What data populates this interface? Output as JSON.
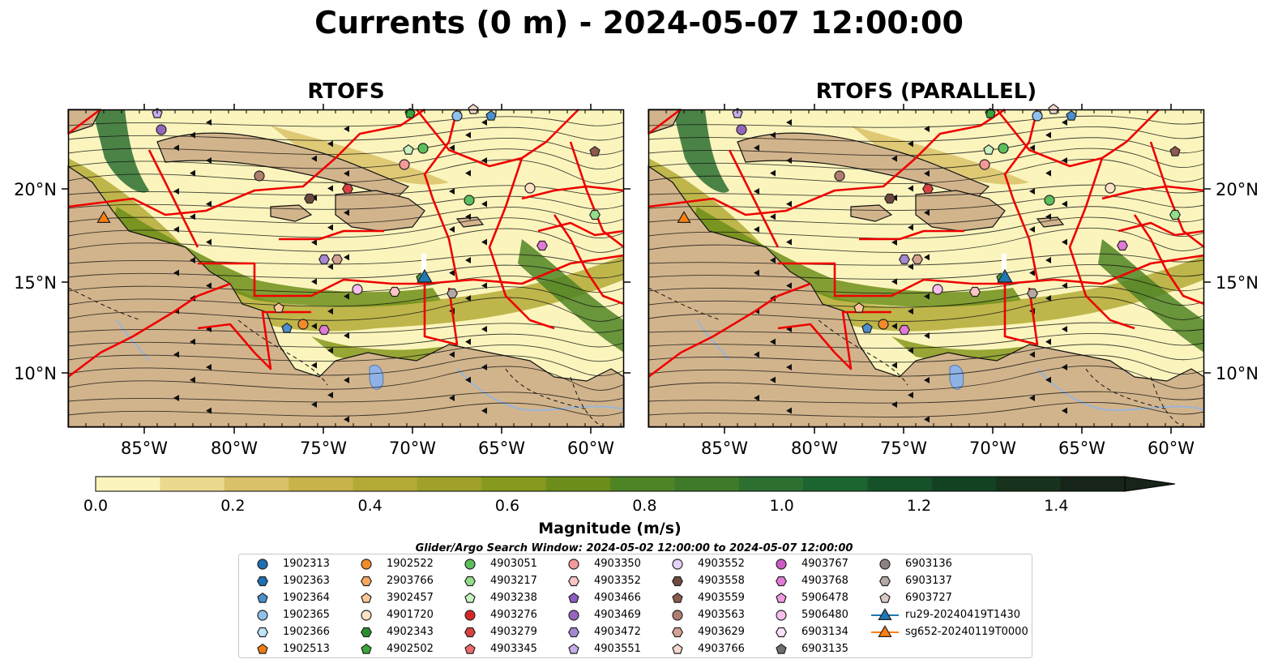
{
  "title": "Currents (0 m) - 2024-05-07 12:00:00",
  "maps": [
    {
      "title": "RTOFS"
    },
    {
      "title": "RTOFS (PARALLEL)"
    }
  ],
  "axes": {
    "lon_ticks": [
      "85°W",
      "80°W",
      "75°W",
      "70°W",
      "65°W",
      "60°W"
    ],
    "lat_ticks": [
      "20°N",
      "15°N",
      "10°N"
    ]
  },
  "colorbar": {
    "label": "Magnitude (m/s)",
    "ticks": [
      "0.0",
      "0.2",
      "0.4",
      "0.6",
      "0.8",
      "1.0",
      "1.2",
      "1.4"
    ],
    "colors": [
      "#fbf5bd",
      "#ebd98f",
      "#d9c169",
      "#c8b24a",
      "#b3aa36",
      "#9fa12a",
      "#86981d",
      "#6d8e1a",
      "#4f8425",
      "#3e7a2a",
      "#2c6f31",
      "#1c6530",
      "#155229",
      "#134223",
      "#17321d",
      "#162419"
    ]
  },
  "search_window": "Glider/Argo Search Window: 2024-05-02 12:00:00 to 2024-05-07 12:00:00",
  "legend": [
    {
      "label": "1902313",
      "color": "#1f6fb4",
      "marker": "circle"
    },
    {
      "label": "1902363",
      "color": "#1f6fb4",
      "marker": "hexagon"
    },
    {
      "label": "1902364",
      "color": "#4a8fd0",
      "marker": "pentagon"
    },
    {
      "label": "1902365",
      "color": "#8fc1ee",
      "marker": "circle"
    },
    {
      "label": "1902366",
      "color": "#bfe3f8",
      "marker": "hexagon"
    },
    {
      "label": "1902513",
      "color": "#f07c0f",
      "marker": "pentagon"
    },
    {
      "label": "1902522",
      "color": "#f28c2a",
      "marker": "circle"
    },
    {
      "label": "2903766",
      "color": "#f6a860",
      "marker": "hexagon"
    },
    {
      "label": "3902457",
      "color": "#f9c796",
      "marker": "pentagon"
    },
    {
      "label": "4901720",
      "color": "#fde3c4",
      "marker": "circle"
    },
    {
      "label": "4902343",
      "color": "#2a8f2a",
      "marker": "hexagon"
    },
    {
      "label": "4902502",
      "color": "#3aa63a",
      "marker": "pentagon"
    },
    {
      "label": "4903051",
      "color": "#5cbf5c",
      "marker": "circle"
    },
    {
      "label": "4903217",
      "color": "#93dd8a",
      "marker": "hexagon"
    },
    {
      "label": "4903238",
      "color": "#c7f2c0",
      "marker": "pentagon"
    },
    {
      "label": "4903276",
      "color": "#d62728",
      "marker": "circle"
    },
    {
      "label": "4903279",
      "color": "#dd4040",
      "marker": "hexagon"
    },
    {
      "label": "4903345",
      "color": "#ee6a6c",
      "marker": "pentagon"
    },
    {
      "label": "4903350",
      "color": "#f39a98",
      "marker": "circle"
    },
    {
      "label": "4903352",
      "color": "#f9c6c4",
      "marker": "hexagon"
    },
    {
      "label": "4903466",
      "color": "#8c5cc4",
      "marker": "pentagon"
    },
    {
      "label": "4903469",
      "color": "#9467bd",
      "marker": "circle"
    },
    {
      "label": "4903472",
      "color": "#a887d2",
      "marker": "hexagon"
    },
    {
      "label": "4903551",
      "color": "#c5aee8",
      "marker": "pentagon"
    },
    {
      "label": "4903552",
      "color": "#e3d3f6",
      "marker": "circle"
    },
    {
      "label": "4903558",
      "color": "#6e4a3e",
      "marker": "hexagon"
    },
    {
      "label": "4903559",
      "color": "#8c5a4e",
      "marker": "pentagon"
    },
    {
      "label": "4903563",
      "color": "#b07e6e",
      "marker": "circle"
    },
    {
      "label": "4903629",
      "color": "#d4a292",
      "marker": "hexagon"
    },
    {
      "label": "4903766",
      "color": "#f6d8cc",
      "marker": "pentagon"
    },
    {
      "label": "4903767",
      "color": "#cc5cc4",
      "marker": "circle"
    },
    {
      "label": "4903768",
      "color": "#e27ad9",
      "marker": "hexagon"
    },
    {
      "label": "5906478",
      "color": "#f09ae6",
      "marker": "pentagon"
    },
    {
      "label": "5906480",
      "color": "#f8bfee",
      "marker": "circle"
    },
    {
      "label": "6903134",
      "color": "#fbe0f6",
      "marker": "hexagon"
    },
    {
      "label": "6903135",
      "color": "#6f6f6f",
      "marker": "pentagon"
    },
    {
      "label": "6903136",
      "color": "#8c8281",
      "marker": "circle"
    },
    {
      "label": "6903137",
      "color": "#b5a7a4",
      "marker": "hexagon"
    },
    {
      "label": "6903727",
      "color": "#ddc9c4",
      "marker": "pentagon"
    },
    {
      "label": "ru29-20240419T1430",
      "color": "#1f77b4",
      "marker": "triangle-line"
    },
    {
      "label": "sg652-20240119T0000",
      "color": "#ff7f0e",
      "marker": "triangle-line"
    }
  ],
  "colors": {
    "land": "#d2b48c",
    "eez_line": "#ee0000",
    "ocean_low": "#fbf5bd",
    "lake": "#8fb3e6"
  }
}
